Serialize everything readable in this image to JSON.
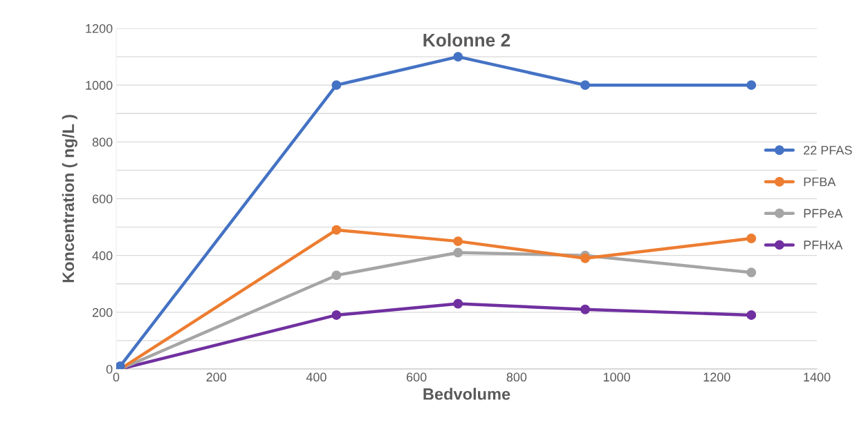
{
  "chart_data": {
    "type": "line",
    "title": "Kolonne 2",
    "xlabel": "Bedvolume",
    "ylabel": "Koncentration ( ng/L )",
    "x": [
      8,
      440,
      683,
      937,
      1269
    ],
    "series": [
      {
        "name": "22 PFAS",
        "color": "#4472c4",
        "values": [
          10,
          1000,
          1100,
          1000,
          1000
        ]
      },
      {
        "name": "PFBA",
        "color": "#ed7d31",
        "values": [
          0,
          490,
          450,
          390,
          460
        ]
      },
      {
        "name": "PFPeA",
        "color": "#a5a5a5",
        "values": [
          0,
          330,
          410,
          400,
          340
        ]
      },
      {
        "name": "PFHxA",
        "color": "#7030a0",
        "values": [
          0,
          190,
          230,
          210,
          190
        ]
      }
    ],
    "xlim": [
      0,
      1400
    ],
    "xticks": [
      0,
      200,
      400,
      600,
      800,
      1000,
      1200,
      1400
    ],
    "ylim": [
      0,
      1200
    ],
    "yticks": [
      0,
      {
        "value": 100,
        "label": null
      },
      200,
      {
        "value": 300,
        "label": null
      },
      400,
      {
        "value": 500,
        "label": null
      },
      600,
      {
        "value": 700,
        "label": null
      },
      800,
      {
        "value": 900,
        "label": null
      },
      1000,
      {
        "value": 1100,
        "label": null
      },
      1200
    ],
    "grid": "y",
    "legend": "right",
    "marker": "circle",
    "line_style": "solid"
  }
}
